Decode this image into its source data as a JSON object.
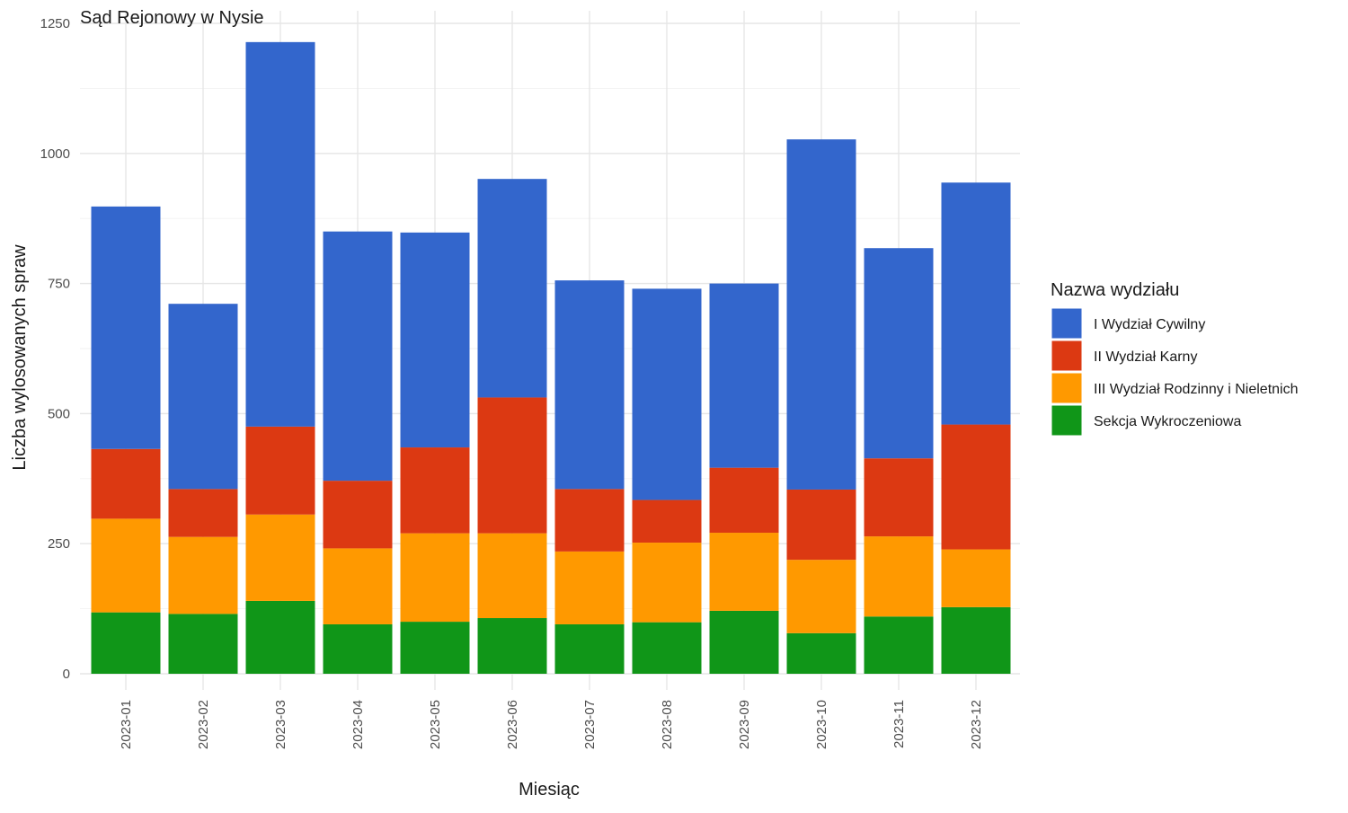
{
  "chart_data": {
    "type": "bar",
    "stacked": true,
    "title": "Sąd Rejonowy w Nysie",
    "xlabel": "Miesiąc",
    "ylabel": "Liczba wylosowanych spraw",
    "ylim": [
      0,
      1250
    ],
    "yticks": [
      0,
      250,
      500,
      750,
      1000,
      1250
    ],
    "grid": true,
    "legend_position": "right",
    "legend_title": "Nazwa wydziału",
    "categories": [
      "2023-01",
      "2023-02",
      "2023-03",
      "2023-04",
      "2023-05",
      "2023-06",
      "2023-07",
      "2023-08",
      "2023-09",
      "2023-10",
      "2023-11",
      "2023-12"
    ],
    "series": [
      {
        "name": "Sekcja Wykroczeniowa",
        "color": "#109618",
        "values": [
          118,
          115,
          140,
          95,
          100,
          107,
          95,
          99,
          121,
          78,
          110,
          128
        ]
      },
      {
        "name": "III Wydział Rodzinny i Nieletnich",
        "color": "#ff9900",
        "values": [
          180,
          148,
          166,
          146,
          170,
          163,
          140,
          153,
          150,
          141,
          154,
          111
        ]
      },
      {
        "name": "II Wydział Karny",
        "color": "#dc3912",
        "values": [
          134,
          92,
          169,
          130,
          165,
          261,
          120,
          82,
          125,
          135,
          150,
          240
        ]
      },
      {
        "name": "I Wydział Cywilny",
        "color": "#3366cc",
        "values": [
          466,
          356,
          739,
          479,
          413,
          420,
          401,
          406,
          354,
          673,
          404,
          465
        ]
      }
    ],
    "legend_order": [
      "I Wydział Cywilny",
      "II Wydział Karny",
      "III Wydział Rodzinny i Nieletnich",
      "Sekcja Wykroczeniowa"
    ]
  }
}
